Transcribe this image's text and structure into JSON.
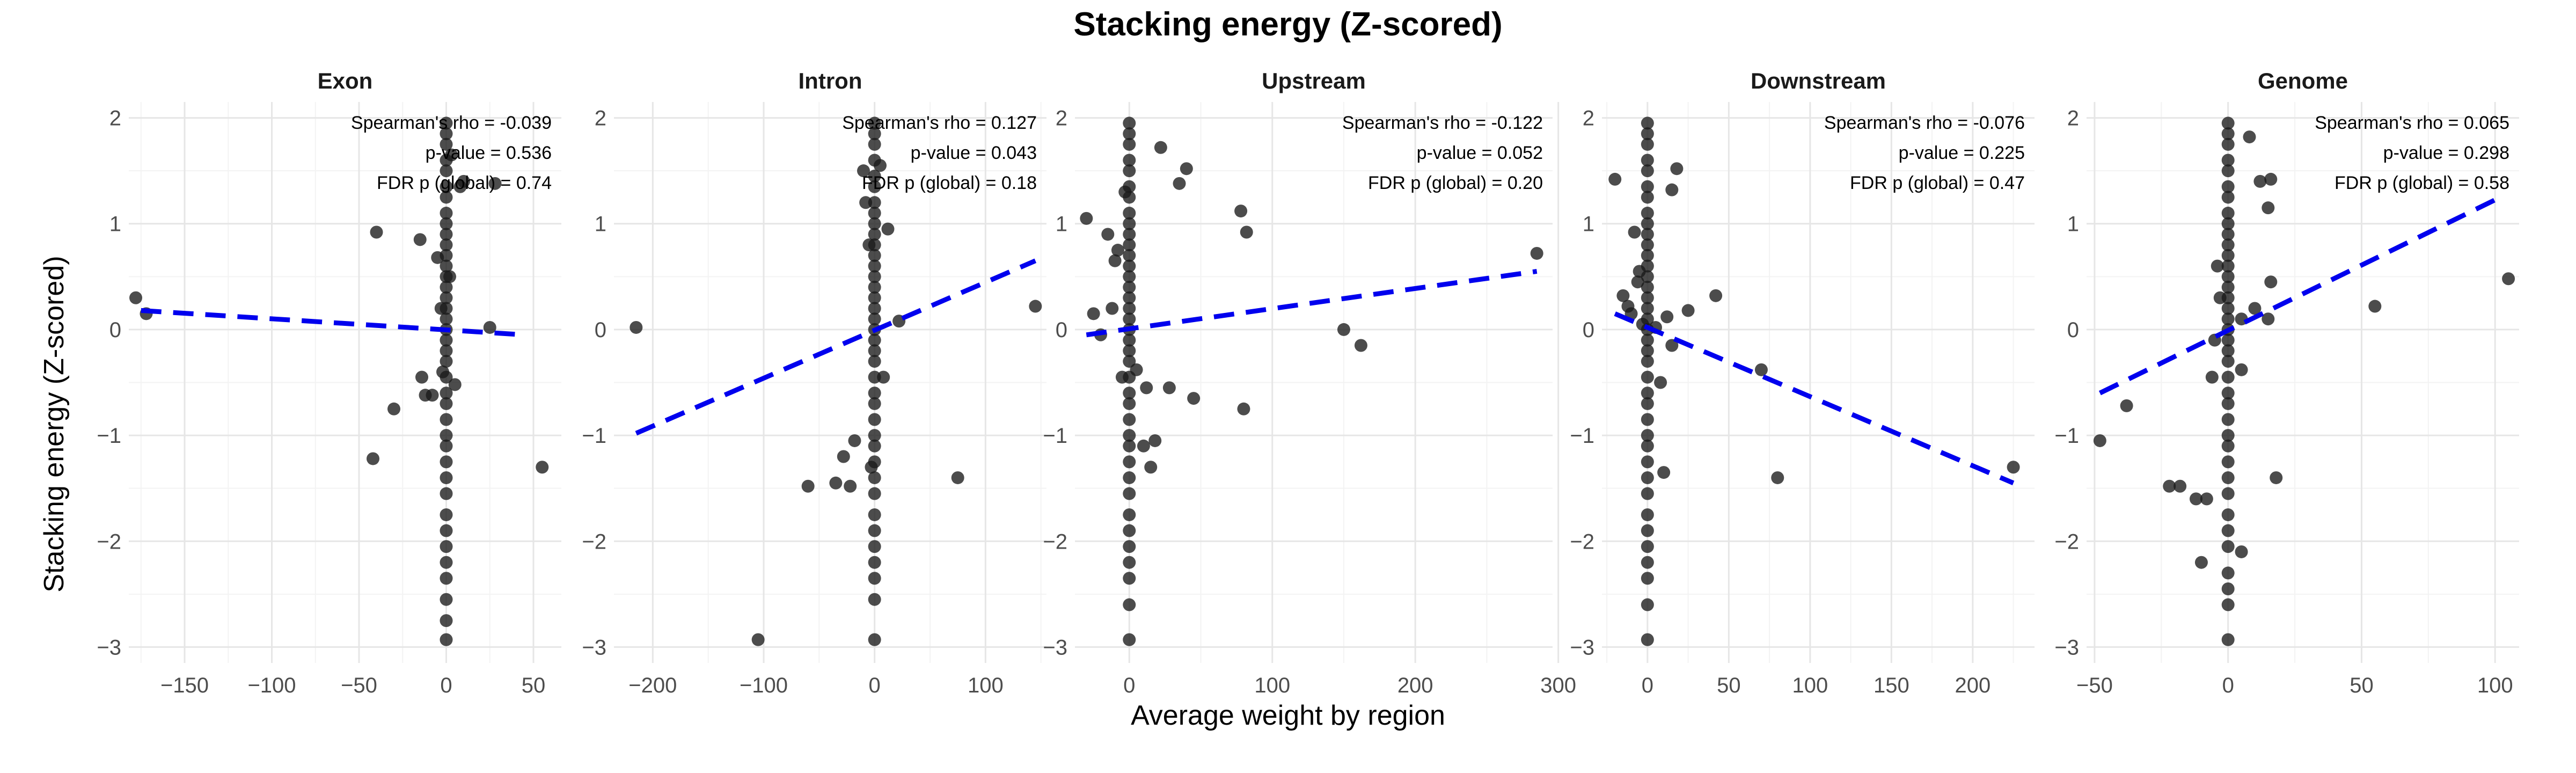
{
  "figure": {
    "title": "Stacking energy (Z-scored)",
    "xlabel": "Average weight by region",
    "ylabel": "Stacking energy (Z-scored)"
  },
  "colors": {
    "point": "#1a1a1a",
    "trend": "#0000ee",
    "grid_major": "#e6e6e6",
    "grid_minor": "#f3f3f3"
  },
  "chart_data": [
    {
      "type": "scatter",
      "facet": "Exon",
      "xlim": [
        -182,
        66
      ],
      "ylim": [
        -3.15,
        2.15
      ],
      "x_ticks": [
        -150,
        -100,
        -50,
        0,
        50
      ],
      "y_ticks": [
        -3,
        -2,
        -1,
        0,
        1,
        2
      ],
      "annotations": [
        "Spearman's rho = -0.039",
        "p-value = 0.536",
        "FDR p (global) = 0.74"
      ],
      "trend": {
        "x": [
          -175,
          45
        ],
        "y": [
          0.18,
          -0.05
        ]
      },
      "points": [
        [
          -178,
          0.3
        ],
        [
          -172,
          0.15
        ],
        [
          -40,
          0.92
        ],
        [
          -42,
          -1.22
        ],
        [
          -30,
          -0.75
        ],
        [
          -15,
          0.85
        ],
        [
          -12,
          -0.62
        ],
        [
          -8,
          -0.62
        ],
        [
          -5,
          0.68
        ],
        [
          -3,
          0.2
        ],
        [
          -2,
          -0.4
        ],
        [
          2,
          0.5
        ],
        [
          3,
          1.65
        ],
        [
          5,
          -0.52
        ],
        [
          -14,
          -0.45
        ],
        [
          8,
          1.35
        ],
        [
          10,
          1.4
        ],
        [
          25,
          0.02
        ],
        [
          28,
          1.38
        ],
        [
          55,
          -1.3
        ],
        [
          0,
          1.95
        ],
        [
          0,
          1.85
        ],
        [
          0,
          1.75
        ],
        [
          0,
          1.6
        ],
        [
          0,
          1.5
        ],
        [
          0,
          1.35
        ],
        [
          0,
          1.25
        ],
        [
          0,
          1.1
        ],
        [
          0,
          1.0
        ],
        [
          0,
          0.9
        ],
        [
          0,
          0.8
        ],
        [
          0,
          0.7
        ],
        [
          0,
          0.6
        ],
        [
          0,
          0.5
        ],
        [
          0,
          0.4
        ],
        [
          0,
          0.3
        ],
        [
          0,
          0.2
        ],
        [
          0,
          0.1
        ],
        [
          0,
          0.0
        ],
        [
          0,
          -0.1
        ],
        [
          0,
          -0.2
        ],
        [
          0,
          -0.3
        ],
        [
          0,
          -0.45
        ],
        [
          0,
          -0.6
        ],
        [
          0,
          -0.7
        ],
        [
          0,
          -0.85
        ],
        [
          0,
          -1.0
        ],
        [
          0,
          -1.1
        ],
        [
          0,
          -1.25
        ],
        [
          0,
          -1.4
        ],
        [
          0,
          -1.55
        ],
        [
          0,
          -1.75
        ],
        [
          0,
          -1.9
        ],
        [
          0,
          -2.05
        ],
        [
          0,
          -2.2
        ],
        [
          0,
          -2.35
        ],
        [
          0,
          -2.55
        ],
        [
          0,
          -2.75
        ],
        [
          0,
          -2.93
        ]
      ]
    },
    {
      "type": "scatter",
      "facet": "Intron",
      "xlim": [
        -235,
        155
      ],
      "ylim": [
        -3.15,
        2.15
      ],
      "x_ticks": [
        -200,
        -100,
        0,
        100
      ],
      "y_ticks": [
        -3,
        -2,
        -1,
        0,
        1,
        2
      ],
      "annotations": [
        "Spearman's rho = 0.127",
        "p-value = 0.043",
        "FDR p (global) = 0.18"
      ],
      "trend": {
        "x": [
          -215,
          145
        ],
        "y": [
          -0.98,
          0.65
        ]
      },
      "points": [
        [
          -215,
          0.02
        ],
        [
          -105,
          -2.93
        ],
        [
          -60,
          -1.48
        ],
        [
          -35,
          -1.45
        ],
        [
          -28,
          -1.2
        ],
        [
          -22,
          -1.48
        ],
        [
          -18,
          -1.05
        ],
        [
          -10,
          1.5
        ],
        [
          -8,
          1.2
        ],
        [
          -5,
          0.8
        ],
        [
          -3,
          -1.3
        ],
        [
          5,
          1.55
        ],
        [
          8,
          -0.45
        ],
        [
          12,
          0.95
        ],
        [
          22,
          0.08
        ],
        [
          75,
          -1.4
        ],
        [
          145,
          0.22
        ],
        [
          0,
          1.95
        ],
        [
          0,
          1.85
        ],
        [
          0,
          1.75
        ],
        [
          0,
          1.6
        ],
        [
          0,
          1.45
        ],
        [
          0,
          1.35
        ],
        [
          0,
          1.2
        ],
        [
          0,
          1.1
        ],
        [
          0,
          1.0
        ],
        [
          0,
          0.9
        ],
        [
          0,
          0.8
        ],
        [
          0,
          0.7
        ],
        [
          0,
          0.6
        ],
        [
          0,
          0.5
        ],
        [
          0,
          0.4
        ],
        [
          0,
          0.3
        ],
        [
          0,
          0.2
        ],
        [
          0,
          0.1
        ],
        [
          0,
          0.0
        ],
        [
          0,
          -0.1
        ],
        [
          0,
          -0.2
        ],
        [
          0,
          -0.3
        ],
        [
          0,
          -0.45
        ],
        [
          0,
          -0.6
        ],
        [
          0,
          -0.7
        ],
        [
          0,
          -0.85
        ],
        [
          0,
          -1.0
        ],
        [
          0,
          -1.1
        ],
        [
          0,
          -1.25
        ],
        [
          0,
          -1.4
        ],
        [
          0,
          -1.55
        ],
        [
          0,
          -1.75
        ],
        [
          0,
          -1.9
        ],
        [
          0,
          -2.05
        ],
        [
          0,
          -2.2
        ],
        [
          0,
          -2.35
        ],
        [
          0,
          -2.55
        ],
        [
          0,
          -2.93
        ]
      ]
    },
    {
      "type": "scatter",
      "facet": "Upstream",
      "xlim": [
        -38,
        296
      ],
      "ylim": [
        -3.15,
        2.15
      ],
      "x_ticks": [
        0,
        100,
        200,
        300
      ],
      "y_ticks": [
        -3,
        -2,
        -1,
        0,
        1,
        2
      ],
      "annotations": [
        "Spearman's rho = -0.122",
        "p-value = 0.052",
        "FDR p (global) = 0.20"
      ],
      "trend": {
        "x": [
          -30,
          285
        ],
        "y": [
          -0.05,
          0.55
        ]
      },
      "points": [
        [
          -30,
          1.05
        ],
        [
          -25,
          0.15
        ],
        [
          -20,
          -0.05
        ],
        [
          -15,
          0.9
        ],
        [
          -12,
          0.2
        ],
        [
          -10,
          0.65
        ],
        [
          -8,
          0.75
        ],
        [
          -5,
          -0.45
        ],
        [
          -3,
          1.3
        ],
        [
          5,
          -0.38
        ],
        [
          10,
          -1.1
        ],
        [
          12,
          -0.55
        ],
        [
          15,
          -1.3
        ],
        [
          18,
          -1.05
        ],
        [
          22,
          1.72
        ],
        [
          28,
          -0.55
        ],
        [
          35,
          1.38
        ],
        [
          40,
          1.52
        ],
        [
          45,
          -0.65
        ],
        [
          78,
          1.12
        ],
        [
          82,
          0.92
        ],
        [
          80,
          -0.75
        ],
        [
          150,
          0.0
        ],
        [
          162,
          -0.15
        ],
        [
          285,
          0.72
        ],
        [
          0,
          1.95
        ],
        [
          0,
          1.85
        ],
        [
          0,
          1.75
        ],
        [
          0,
          1.6
        ],
        [
          0,
          1.5
        ],
        [
          0,
          1.35
        ],
        [
          0,
          1.25
        ],
        [
          0,
          1.1
        ],
        [
          0,
          1.0
        ],
        [
          0,
          0.9
        ],
        [
          0,
          0.8
        ],
        [
          0,
          0.7
        ],
        [
          0,
          0.6
        ],
        [
          0,
          0.5
        ],
        [
          0,
          0.4
        ],
        [
          0,
          0.3
        ],
        [
          0,
          0.2
        ],
        [
          0,
          0.1
        ],
        [
          0,
          0.0
        ],
        [
          0,
          -0.1
        ],
        [
          0,
          -0.2
        ],
        [
          0,
          -0.3
        ],
        [
          0,
          -0.45
        ],
        [
          0,
          -0.6
        ],
        [
          0,
          -0.7
        ],
        [
          0,
          -0.85
        ],
        [
          0,
          -1.0
        ],
        [
          0,
          -1.1
        ],
        [
          0,
          -1.25
        ],
        [
          0,
          -1.4
        ],
        [
          0,
          -1.55
        ],
        [
          0,
          -1.75
        ],
        [
          0,
          -1.9
        ],
        [
          0,
          -2.05
        ],
        [
          0,
          -2.2
        ],
        [
          0,
          -2.35
        ],
        [
          0,
          -2.6
        ],
        [
          0,
          -2.93
        ]
      ]
    },
    {
      "type": "scatter",
      "facet": "Downstream",
      "xlim": [
        -28,
        238
      ],
      "ylim": [
        -3.15,
        2.15
      ],
      "x_ticks": [
        0,
        50,
        100,
        150,
        200
      ],
      "y_ticks": [
        -3,
        -2,
        -1,
        0,
        1,
        2
      ],
      "annotations": [
        "Spearman's rho = -0.076",
        "p-value = 0.225",
        "FDR p (global) = 0.47"
      ],
      "trend": {
        "x": [
          -20,
          225
        ],
        "y": [
          0.15,
          -1.45
        ]
      },
      "points": [
        [
          -20,
          1.42
        ],
        [
          -15,
          0.32
        ],
        [
          -12,
          0.22
        ],
        [
          -10,
          0.15
        ],
        [
          -8,
          0.92
        ],
        [
          -6,
          0.45
        ],
        [
          -5,
          0.55
        ],
        [
          -3,
          0.05
        ],
        [
          5,
          0.02
        ],
        [
          8,
          -0.5
        ],
        [
          10,
          -1.35
        ],
        [
          12,
          0.12
        ],
        [
          15,
          -0.15
        ],
        [
          15,
          1.32
        ],
        [
          18,
          1.52
        ],
        [
          25,
          0.18
        ],
        [
          42,
          0.32
        ],
        [
          70,
          -0.38
        ],
        [
          80,
          -1.4
        ],
        [
          225,
          -1.3
        ],
        [
          0,
          1.95
        ],
        [
          0,
          1.85
        ],
        [
          0,
          1.75
        ],
        [
          0,
          1.6
        ],
        [
          0,
          1.5
        ],
        [
          0,
          1.35
        ],
        [
          0,
          1.25
        ],
        [
          0,
          1.1
        ],
        [
          0,
          1.0
        ],
        [
          0,
          0.9
        ],
        [
          0,
          0.8
        ],
        [
          0,
          0.7
        ],
        [
          0,
          0.6
        ],
        [
          0,
          0.5
        ],
        [
          0,
          0.4
        ],
        [
          0,
          0.3
        ],
        [
          0,
          0.2
        ],
        [
          0,
          0.1
        ],
        [
          0,
          0.0
        ],
        [
          0,
          -0.1
        ],
        [
          0,
          -0.2
        ],
        [
          0,
          -0.3
        ],
        [
          0,
          -0.45
        ],
        [
          0,
          -0.6
        ],
        [
          0,
          -0.7
        ],
        [
          0,
          -0.85
        ],
        [
          0,
          -1.0
        ],
        [
          0,
          -1.1
        ],
        [
          0,
          -1.25
        ],
        [
          0,
          -1.4
        ],
        [
          0,
          -1.55
        ],
        [
          0,
          -1.75
        ],
        [
          0,
          -1.9
        ],
        [
          0,
          -2.05
        ],
        [
          0,
          -2.2
        ],
        [
          0,
          -2.35
        ],
        [
          0,
          -2.6
        ],
        [
          0,
          -2.93
        ]
      ]
    },
    {
      "type": "scatter",
      "facet": "Genome",
      "xlim": [
        -53,
        109
      ],
      "ylim": [
        -3.15,
        2.15
      ],
      "x_ticks": [
        -50,
        0,
        50,
        100
      ],
      "y_ticks": [
        -3,
        -2,
        -1,
        0,
        1,
        2
      ],
      "annotations": [
        "Spearman's rho = 0.065",
        "p-value = 0.298",
        "FDR p (global) = 0.58"
      ],
      "trend": {
        "x": [
          -48,
          102
        ],
        "y": [
          -0.6,
          1.25
        ]
      },
      "points": [
        [
          -48,
          -1.05
        ],
        [
          -38,
          -0.72
        ],
        [
          -22,
          -1.48
        ],
        [
          -18,
          -1.48
        ],
        [
          -12,
          -1.6
        ],
        [
          -10,
          -2.2
        ],
        [
          -8,
          -1.6
        ],
        [
          -6,
          -0.45
        ],
        [
          -5,
          -0.1
        ],
        [
          -4,
          0.6
        ],
        [
          -3,
          0.3
        ],
        [
          5,
          -0.38
        ],
        [
          5,
          -2.1
        ],
        [
          5,
          0.1
        ],
        [
          8,
          1.82
        ],
        [
          10,
          0.2
        ],
        [
          12,
          1.4
        ],
        [
          15,
          1.15
        ],
        [
          15,
          0.1
        ],
        [
          16,
          1.42
        ],
        [
          16,
          0.45
        ],
        [
          18,
          -1.4
        ],
        [
          55,
          0.22
        ],
        [
          105,
          0.48
        ],
        [
          0,
          1.95
        ],
        [
          0,
          1.85
        ],
        [
          0,
          1.75
        ],
        [
          0,
          1.6
        ],
        [
          0,
          1.5
        ],
        [
          0,
          1.35
        ],
        [
          0,
          1.25
        ],
        [
          0,
          1.1
        ],
        [
          0,
          1.0
        ],
        [
          0,
          0.9
        ],
        [
          0,
          0.8
        ],
        [
          0,
          0.7
        ],
        [
          0,
          0.6
        ],
        [
          0,
          0.5
        ],
        [
          0,
          0.4
        ],
        [
          0,
          0.3
        ],
        [
          0,
          0.2
        ],
        [
          0,
          0.1
        ],
        [
          0,
          0.0
        ],
        [
          0,
          -0.1
        ],
        [
          0,
          -0.2
        ],
        [
          0,
          -0.3
        ],
        [
          0,
          -0.45
        ],
        [
          0,
          -0.6
        ],
        [
          0,
          -0.7
        ],
        [
          0,
          -0.85
        ],
        [
          0,
          -1.0
        ],
        [
          0,
          -1.1
        ],
        [
          0,
          -1.25
        ],
        [
          0,
          -1.4
        ],
        [
          0,
          -1.55
        ],
        [
          0,
          -1.75
        ],
        [
          0,
          -1.9
        ],
        [
          0,
          -2.05
        ],
        [
          0,
          -2.3
        ],
        [
          0,
          -2.45
        ],
        [
          0,
          -2.6
        ],
        [
          0,
          -2.93
        ]
      ]
    }
  ]
}
